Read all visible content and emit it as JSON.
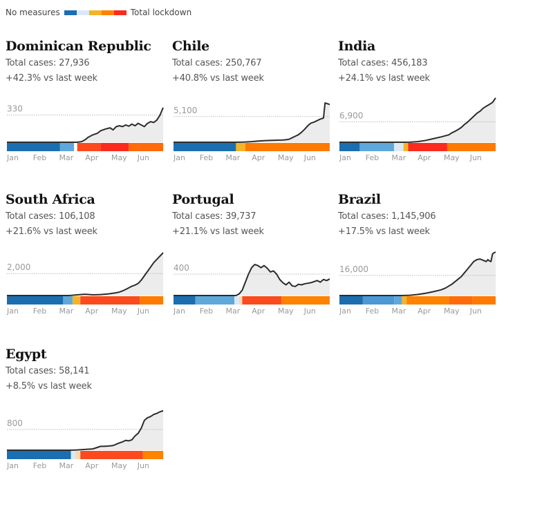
{
  "legend": {
    "left_label": "No measures",
    "right_label": "Total lockdown",
    "scale_colors": [
      "#1b6eb0",
      "#dbe9f6",
      "#f4b427",
      "#ff8200",
      "#fb2a1e"
    ]
  },
  "colors": {
    "line": "#2b2b2b",
    "area": "#ececec",
    "ref_line": "#bbbbbb"
  },
  "chart_data": [
    {
      "type": "line",
      "title": "Dominican Republic",
      "total_cases_label": "Total cases: 27,936",
      "change_label": "+42.3% vs last week",
      "ref_value": 330,
      "ref_label": "330",
      "ymax": 520,
      "x_ticks": [
        "Jan",
        "Feb",
        "Mar",
        "Apr",
        "May",
        "Jun"
      ],
      "x": [
        0,
        0.1,
        0.2,
        0.3,
        0.4,
        0.45,
        0.48,
        0.5,
        0.52,
        0.55,
        0.58,
        0.6,
        0.63,
        0.66,
        0.68,
        0.7,
        0.72,
        0.74,
        0.76,
        0.78,
        0.8,
        0.82,
        0.84,
        0.86,
        0.88,
        0.9,
        0.92,
        0.94,
        0.96,
        0.98,
        1.0
      ],
      "values": [
        0,
        0,
        0,
        0,
        0,
        0,
        8,
        30,
        60,
        90,
        110,
        140,
        160,
        175,
        150,
        190,
        200,
        190,
        210,
        195,
        220,
        200,
        230,
        210,
        190,
        230,
        250,
        240,
        270,
        330,
        420
      ],
      "measures": [
        {
          "end": 0.34,
          "color": "#1b6eb0"
        },
        {
          "end": 0.43,
          "color": "#5fa8dc"
        },
        {
          "end": 0.45,
          "color": "#ffffff"
        },
        {
          "end": 0.6,
          "color": "#fb4a1e"
        },
        {
          "end": 0.78,
          "color": "#fb2a1e"
        },
        {
          "end": 1.0,
          "color": "#ff6b0a"
        }
      ]
    },
    {
      "type": "line",
      "title": "Chile",
      "total_cases_label": "Total cases: 250,767",
      "change_label": "+40.8% vs last week",
      "ref_value": 5100,
      "ref_label": "5,100",
      "ymax": 8500,
      "x_ticks": [
        "Jan",
        "Feb",
        "Mar",
        "Apr",
        "May",
        "Jun"
      ],
      "x": [
        0,
        0.2,
        0.4,
        0.45,
        0.5,
        0.55,
        0.6,
        0.65,
        0.68,
        0.7,
        0.72,
        0.74,
        0.76,
        0.78,
        0.8,
        0.82,
        0.84,
        0.86,
        0.88,
        0.9,
        0.92,
        0.94,
        0.95,
        0.96,
        0.97,
        0.98,
        0.99,
        1.0
      ],
      "values": [
        0,
        0,
        0,
        30,
        120,
        250,
        350,
        400,
        420,
        450,
        500,
        600,
        900,
        1200,
        1500,
        2000,
        2600,
        3300,
        3800,
        4000,
        4300,
        4600,
        4700,
        4800,
        7800,
        7700,
        7600,
        7500
      ],
      "measures": [
        {
          "end": 0.4,
          "color": "#1b6eb0"
        },
        {
          "end": 0.46,
          "color": "#f4b427"
        },
        {
          "end": 1.0,
          "color": "#ff7a00"
        }
      ]
    },
    {
      "type": "line",
      "title": "India",
      "total_cases_label": "Total cases: 456,183",
      "change_label": "+24.1% vs last week",
      "ref_value": 6900,
      "ref_label": "6,900",
      "ymax": 14500,
      "x_ticks": [
        "Jan",
        "Feb",
        "Mar",
        "Apr",
        "May",
        "Jun"
      ],
      "x": [
        0,
        0.2,
        0.4,
        0.45,
        0.5,
        0.55,
        0.6,
        0.65,
        0.7,
        0.72,
        0.74,
        0.76,
        0.78,
        0.8,
        0.82,
        0.84,
        0.86,
        0.88,
        0.9,
        0.92,
        0.94,
        0.96,
        0.98,
        1.0
      ],
      "values": [
        0,
        0,
        0,
        20,
        200,
        600,
        1200,
        1800,
        2500,
        3200,
        3700,
        4300,
        5000,
        6000,
        6800,
        7800,
        8800,
        9800,
        10500,
        11500,
        12200,
        12800,
        13500,
        15000
      ],
      "measures": [
        {
          "end": 0.13,
          "color": "#1b6eb0"
        },
        {
          "end": 0.35,
          "color": "#5fa8dc"
        },
        {
          "end": 0.41,
          "color": "#dbe9f6"
        },
        {
          "end": 0.44,
          "color": "#f4b427"
        },
        {
          "end": 0.69,
          "color": "#fb2a1e"
        },
        {
          "end": 1.0,
          "color": "#ff7a00"
        }
      ]
    },
    {
      "type": "line",
      "title": "South Africa",
      "total_cases_label": "Total cases: 106,108",
      "change_label": "+21.6% vs last week",
      "ref_value": 2000,
      "ref_label": "2,000",
      "ymax": 3900,
      "x_ticks": [
        "Jan",
        "Feb",
        "Mar",
        "Apr",
        "May",
        "Jun"
      ],
      "x": [
        0,
        0.2,
        0.4,
        0.45,
        0.5,
        0.55,
        0.6,
        0.65,
        0.7,
        0.72,
        0.74,
        0.76,
        0.78,
        0.8,
        0.82,
        0.84,
        0.86,
        0.88,
        0.9,
        0.92,
        0.94,
        0.96,
        0.98,
        1.0
      ],
      "values": [
        0,
        0,
        0,
        60,
        120,
        60,
        90,
        150,
        250,
        320,
        420,
        550,
        700,
        850,
        950,
        1100,
        1400,
        1800,
        2200,
        2600,
        3000,
        3300,
        3600,
        3900
      ],
      "measures": [
        {
          "end": 0.36,
          "color": "#1b6eb0"
        },
        {
          "end": 0.42,
          "color": "#5fa8dc"
        },
        {
          "end": 0.47,
          "color": "#f4b427"
        },
        {
          "end": 0.85,
          "color": "#fb4a1e"
        },
        {
          "end": 1.0,
          "color": "#ff7a00"
        }
      ]
    },
    {
      "type": "line",
      "title": "Portugal",
      "total_cases_label": "Total cases: 39,737",
      "change_label": "+21.1% vs last week",
      "ref_value": 400,
      "ref_label": "400",
      "ymax": 800,
      "x_ticks": [
        "Jan",
        "Feb",
        "Mar",
        "Apr",
        "May",
        "Jun"
      ],
      "x": [
        0,
        0.2,
        0.4,
        0.42,
        0.44,
        0.46,
        0.48,
        0.5,
        0.52,
        0.54,
        0.56,
        0.58,
        0.6,
        0.62,
        0.64,
        0.66,
        0.68,
        0.7,
        0.72,
        0.74,
        0.76,
        0.78,
        0.8,
        0.82,
        0.84,
        0.86,
        0.88,
        0.9,
        0.92,
        0.94,
        0.96,
        0.98,
        1.0
      ],
      "values": [
        0,
        0,
        0,
        30,
        100,
        250,
        400,
        520,
        580,
        560,
        520,
        560,
        510,
        440,
        460,
        400,
        300,
        240,
        200,
        250,
        180,
        170,
        210,
        200,
        220,
        230,
        240,
        260,
        280,
        250,
        300,
        280,
        310
      ],
      "measures": [
        {
          "end": 0.14,
          "color": "#1b6eb0"
        },
        {
          "end": 0.39,
          "color": "#5fa8dc"
        },
        {
          "end": 0.42,
          "color": "#dbe9f6"
        },
        {
          "end": 0.44,
          "color": "#f4dcb0"
        },
        {
          "end": 0.69,
          "color": "#fb4a1e"
        },
        {
          "end": 1.0,
          "color": "#ff8200"
        }
      ]
    },
    {
      "type": "line",
      "title": "Brazil",
      "total_cases_label": "Total cases: 1,145,906",
      "change_label": "+17.5% vs last week",
      "ref_value": 16000,
      "ref_label": "16,000",
      "ymax": 34000,
      "x_ticks": [
        "Jan",
        "Feb",
        "Mar",
        "Apr",
        "May",
        "Jun"
      ],
      "x": [
        0,
        0.2,
        0.4,
        0.45,
        0.5,
        0.55,
        0.6,
        0.65,
        0.68,
        0.7,
        0.72,
        0.74,
        0.76,
        0.78,
        0.8,
        0.82,
        0.84,
        0.86,
        0.88,
        0.9,
        0.92,
        0.94,
        0.95,
        0.96,
        0.97,
        0.98,
        0.99,
        1.0
      ],
      "values": [
        0,
        0,
        0,
        200,
        800,
        1800,
        3000,
        4500,
        6000,
        7500,
        9000,
        11000,
        13000,
        15000,
        18000,
        21000,
        24000,
        27000,
        28500,
        29000,
        28000,
        27000,
        28500,
        27500,
        27000,
        33000,
        34000,
        34500
      ],
      "measures": [
        {
          "end": 0.15,
          "color": "#1b6eb0"
        },
        {
          "end": 0.35,
          "color": "#4a98d6"
        },
        {
          "end": 0.4,
          "color": "#5fa8dc"
        },
        {
          "end": 0.43,
          "color": "#f4b427"
        },
        {
          "end": 0.7,
          "color": "#ff8200"
        },
        {
          "end": 0.85,
          "color": "#ff6b0a"
        },
        {
          "end": 1.0,
          "color": "#ff7a00"
        }
      ]
    },
    {
      "type": "line",
      "title": "Egypt",
      "total_cases_label": "Total cases: 58,141",
      "change_label": "+8.5% vs last week",
      "ref_value": 800,
      "ref_label": "800",
      "ymax": 1650,
      "x_ticks": [
        "Jan",
        "Feb",
        "Mar",
        "Apr",
        "May",
        "Jun"
      ],
      "x": [
        0,
        0.2,
        0.4,
        0.45,
        0.5,
        0.55,
        0.58,
        0.6,
        0.62,
        0.65,
        0.68,
        0.7,
        0.72,
        0.74,
        0.76,
        0.78,
        0.8,
        0.82,
        0.84,
        0.86,
        0.88,
        0.9,
        0.92,
        0.94,
        0.96,
        0.98,
        1.0
      ],
      "values": [
        0,
        0,
        0,
        10,
        30,
        50,
        110,
        150,
        150,
        160,
        180,
        230,
        280,
        320,
        380,
        360,
        400,
        550,
        650,
        850,
        1150,
        1250,
        1300,
        1380,
        1420,
        1480,
        1520
      ],
      "measures": [
        {
          "end": 0.41,
          "color": "#1b6eb0"
        },
        {
          "end": 0.44,
          "color": "#dbe9f6"
        },
        {
          "end": 0.47,
          "color": "#f4dcb0"
        },
        {
          "end": 0.87,
          "color": "#fb4a1e"
        },
        {
          "end": 1.0,
          "color": "#ff8200"
        }
      ]
    }
  ]
}
